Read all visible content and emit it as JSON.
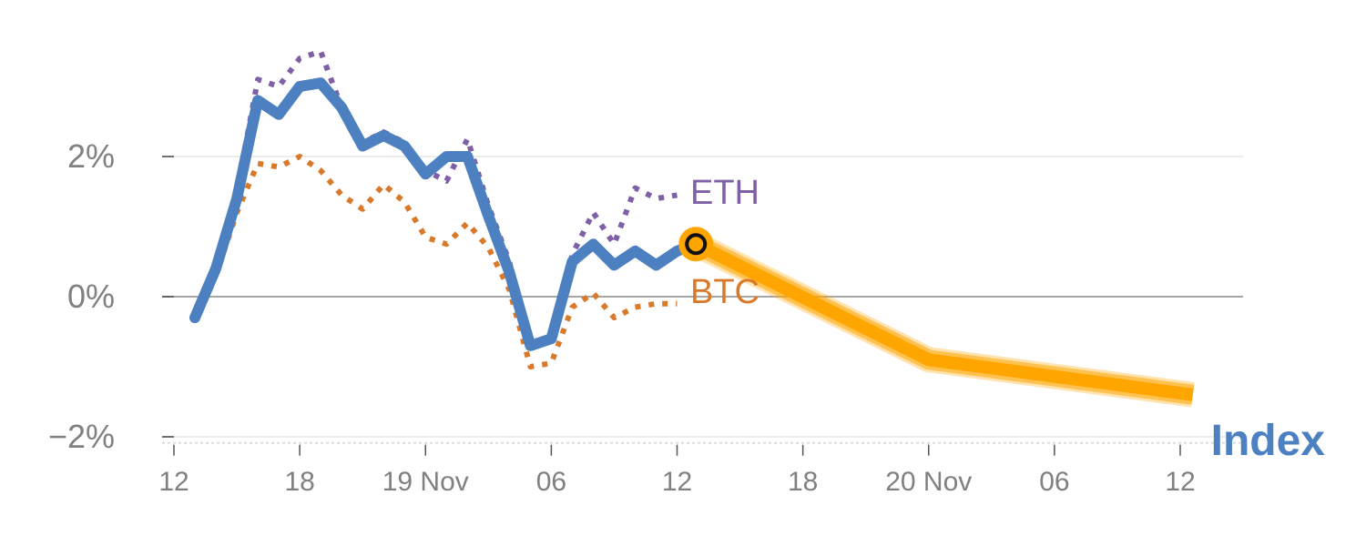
{
  "chart_data": {
    "type": "line",
    "x_unit": "hours",
    "x_ticks": [
      {
        "label": "12",
        "x": 0
      },
      {
        "label": "18",
        "x": 6
      },
      {
        "label": "19 Nov",
        "x": 12
      },
      {
        "label": "06",
        "x": 18
      },
      {
        "label": "12",
        "x": 24
      },
      {
        "label": "18",
        "x": 30
      },
      {
        "label": "20 Nov",
        "x": 36
      },
      {
        "label": "06",
        "x": 42
      },
      {
        "label": "12",
        "x": 48
      }
    ],
    "y_ticks": [
      {
        "label": "−2%",
        "y": -2
      },
      {
        "label": "0%",
        "y": 0
      },
      {
        "label": "2%",
        "y": 2
      }
    ],
    "xlim": [
      -0.5,
      50.5
    ],
    "ylim": [
      -2.1,
      3.4
    ],
    "series": [
      {
        "name": "ETH",
        "style": "dotted",
        "color": "#7f5fa6",
        "points": [
          [
            1,
            -0.3
          ],
          [
            2,
            0.35
          ],
          [
            3,
            1.5
          ],
          [
            4,
            3.1
          ],
          [
            5,
            3.0
          ],
          [
            6,
            3.4
          ],
          [
            7,
            3.5
          ],
          [
            8,
            2.7
          ],
          [
            9,
            2.2
          ],
          [
            10,
            2.35
          ],
          [
            11,
            2.2
          ],
          [
            12,
            1.8
          ],
          [
            13,
            1.65
          ],
          [
            14,
            2.25
          ],
          [
            15,
            1.3
          ],
          [
            16,
            0.5
          ],
          [
            17,
            -0.75
          ],
          [
            18,
            -0.55
          ],
          [
            19,
            0.6
          ],
          [
            20,
            1.2
          ],
          [
            21,
            0.75
          ],
          [
            22,
            1.55
          ],
          [
            23,
            1.4
          ],
          [
            24,
            1.45
          ]
        ]
      },
      {
        "name": "BTC",
        "style": "dotted",
        "color": "#d97a2b",
        "points": [
          [
            1,
            -0.25
          ],
          [
            2,
            0.3
          ],
          [
            3,
            1.2
          ],
          [
            4,
            1.9
          ],
          [
            5,
            1.85
          ],
          [
            6,
            2.0
          ],
          [
            7,
            1.8
          ],
          [
            8,
            1.45
          ],
          [
            9,
            1.25
          ],
          [
            10,
            1.6
          ],
          [
            11,
            1.35
          ],
          [
            12,
            0.85
          ],
          [
            13,
            0.75
          ],
          [
            14,
            1.05
          ],
          [
            15,
            0.7
          ],
          [
            16,
            0.1
          ],
          [
            17,
            -1.0
          ],
          [
            18,
            -0.95
          ],
          [
            19,
            -0.15
          ],
          [
            20,
            0.05
          ],
          [
            21,
            -0.3
          ],
          [
            22,
            -0.15
          ],
          [
            23,
            -0.1
          ],
          [
            24,
            -0.1
          ]
        ]
      },
      {
        "name": "Index",
        "style": "solid",
        "color": "#4d80c0",
        "points": [
          [
            1,
            -0.3
          ],
          [
            2,
            0.4
          ],
          [
            3,
            1.4
          ],
          [
            4,
            2.8
          ],
          [
            5,
            2.6
          ],
          [
            6,
            3.0
          ],
          [
            7,
            3.05
          ],
          [
            8,
            2.7
          ],
          [
            9,
            2.15
          ],
          [
            10,
            2.3
          ],
          [
            11,
            2.15
          ],
          [
            12,
            1.75
          ],
          [
            13,
            2.0
          ],
          [
            14,
            2.0
          ],
          [
            15,
            1.15
          ],
          [
            16,
            0.35
          ],
          [
            17,
            -0.7
          ],
          [
            18,
            -0.6
          ],
          [
            19,
            0.5
          ],
          [
            20,
            0.75
          ],
          [
            21,
            0.45
          ],
          [
            22,
            0.65
          ],
          [
            23,
            0.45
          ],
          [
            24,
            0.65
          ],
          [
            24.9,
            0.75
          ]
        ]
      }
    ],
    "forecast": {
      "color": "#ffa500",
      "points": [
        [
          24.9,
          0.75
        ],
        [
          36,
          -0.9
        ],
        [
          48.6,
          -1.4
        ]
      ]
    },
    "current_marker": {
      "x": 24.9,
      "y": 0.75,
      "color": "#ffa500"
    },
    "labels": {
      "eth": {
        "text": "ETH",
        "color": "#7f5fa6"
      },
      "btc": {
        "text": "BTC",
        "color": "#d97a2b"
      },
      "index": {
        "text": "Index",
        "color": "#4d80c0"
      }
    },
    "grid": true,
    "title": "",
    "xlabel": "",
    "ylabel": ""
  }
}
